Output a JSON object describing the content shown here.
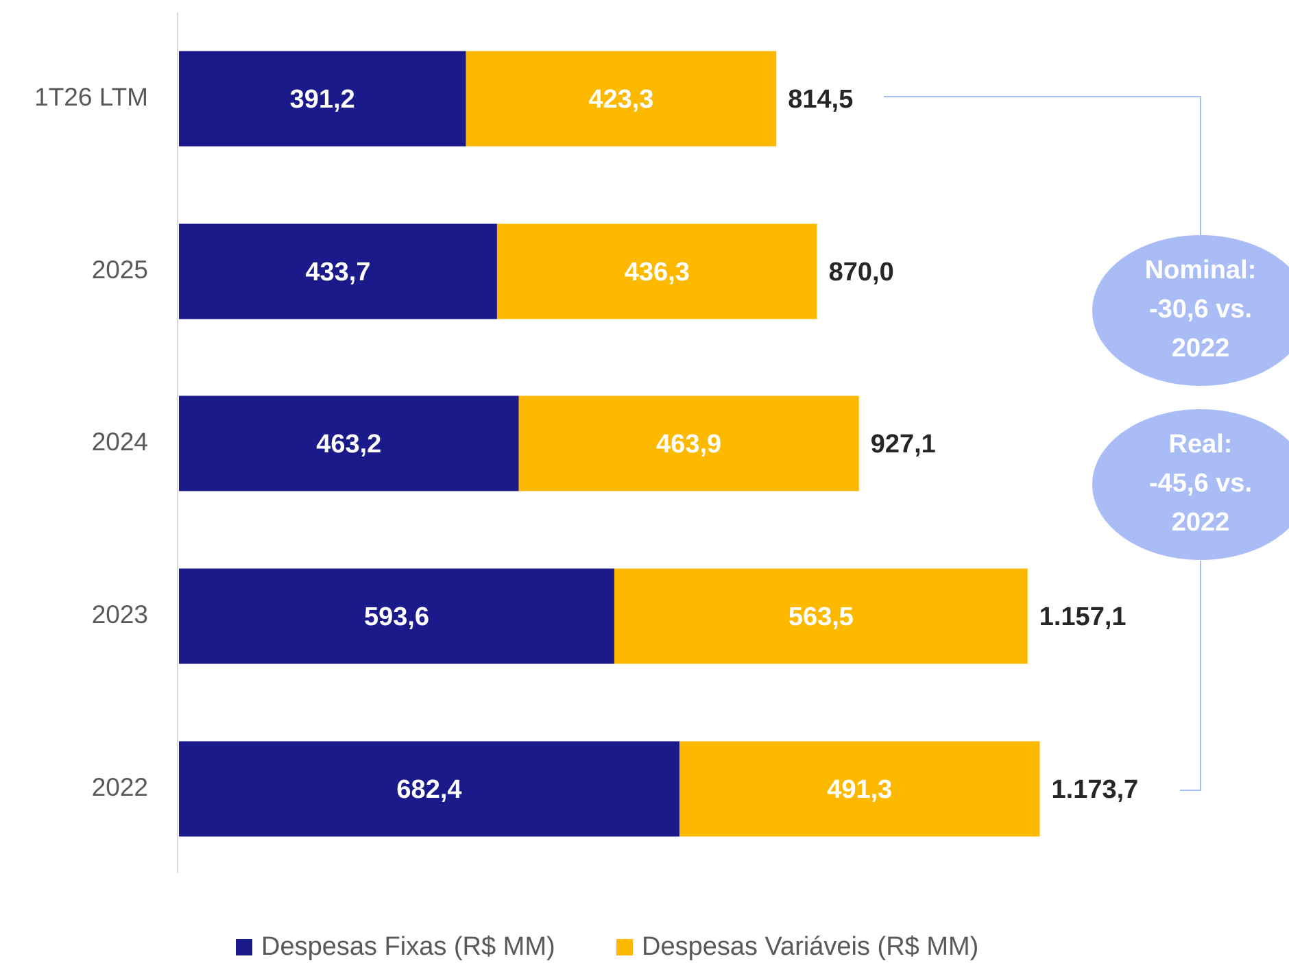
{
  "chart_data": {
    "type": "stacked_barh",
    "categories": [
      "1T26 LTM",
      "2025",
      "2024",
      "2023",
      "2022"
    ],
    "series": [
      {
        "name": "Despesas Fixas (R$ MM)",
        "color": "#1a1a8a",
        "values": [
          391.2,
          433.7,
          463.2,
          593.6,
          682.4
        ],
        "value_labels": [
          "391,2",
          "433,7",
          "463,2",
          "593,6",
          "682,4"
        ]
      },
      {
        "name": "Despesas Variáveis (R$ MM)",
        "color": "#fdb800",
        "values": [
          423.3,
          436.3,
          463.9,
          563.5,
          491.3
        ],
        "value_labels": [
          "423,3",
          "436,3",
          "463,9",
          "563,5",
          "491,3"
        ]
      }
    ],
    "totals": [
      814.5,
      870.0,
      927.1,
      1157.1,
      1173.7
    ],
    "total_labels": [
      "814,5",
      "870,0",
      "927,1",
      "1.157,1",
      "1.173,7"
    ],
    "annotations": [
      {
        "lines": [
          "Nominal:",
          "-30,6 vs.",
          "2022"
        ],
        "color": "#a9bcf5"
      },
      {
        "lines": [
          "Real:",
          "-45,6 vs.",
          "2022"
        ],
        "color": "#a9bcf5"
      }
    ],
    "legend": "bottom"
  }
}
